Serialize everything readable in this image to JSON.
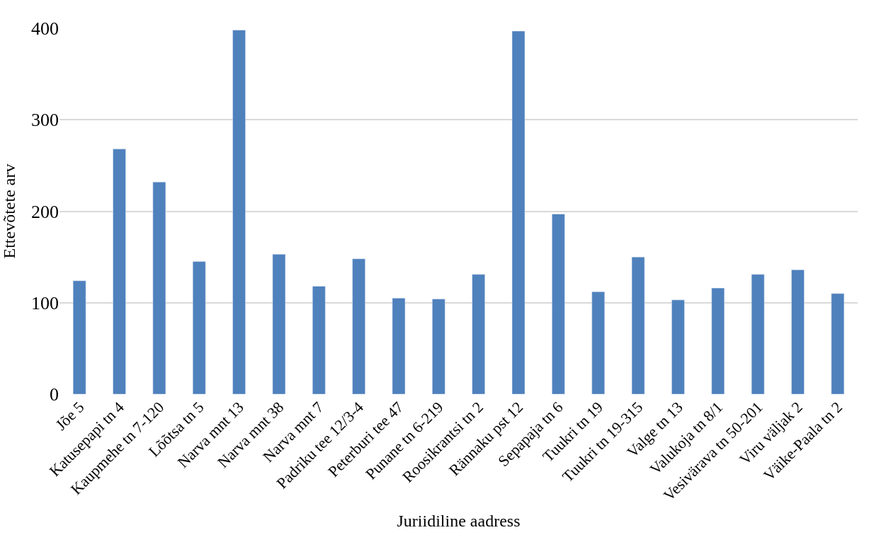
{
  "chart_data": {
    "type": "bar",
    "xlabel": "Juriidiline aadress",
    "ylabel": "Ettevõtete arv",
    "categories": [
      "Jõe 5",
      "Katusepapi tn 4",
      "Kaupmehe tn 7-120",
      "Lõõtsa tn 5",
      "Narva mnt 13",
      "Narva mnt 38",
      "Narva mnt 7",
      "Padriku tee 12/3-4",
      "Peterburi tee 47",
      "Punane tn 6-219",
      "Roosikrantsi tn 2",
      "Rännaku pst 12",
      "Sepapaja tn 6",
      "Tuukri tn 19",
      "Tuukri tn 19-315",
      "Valge tn 13",
      "Valukoja tn 8/1",
      "Vesivärava tn 50-201",
      "Viru väljak 2",
      "Väike-Paala tn 2"
    ],
    "values": [
      124,
      268,
      232,
      145,
      398,
      153,
      118,
      148,
      105,
      104,
      131,
      397,
      197,
      112,
      150,
      103,
      116,
      131,
      136,
      110
    ],
    "color": "#4f81bd",
    "ylim": [
      0,
      400
    ],
    "yticks": [
      0,
      100,
      200,
      300,
      400
    ],
    "grid": "y",
    "legend": false
  }
}
